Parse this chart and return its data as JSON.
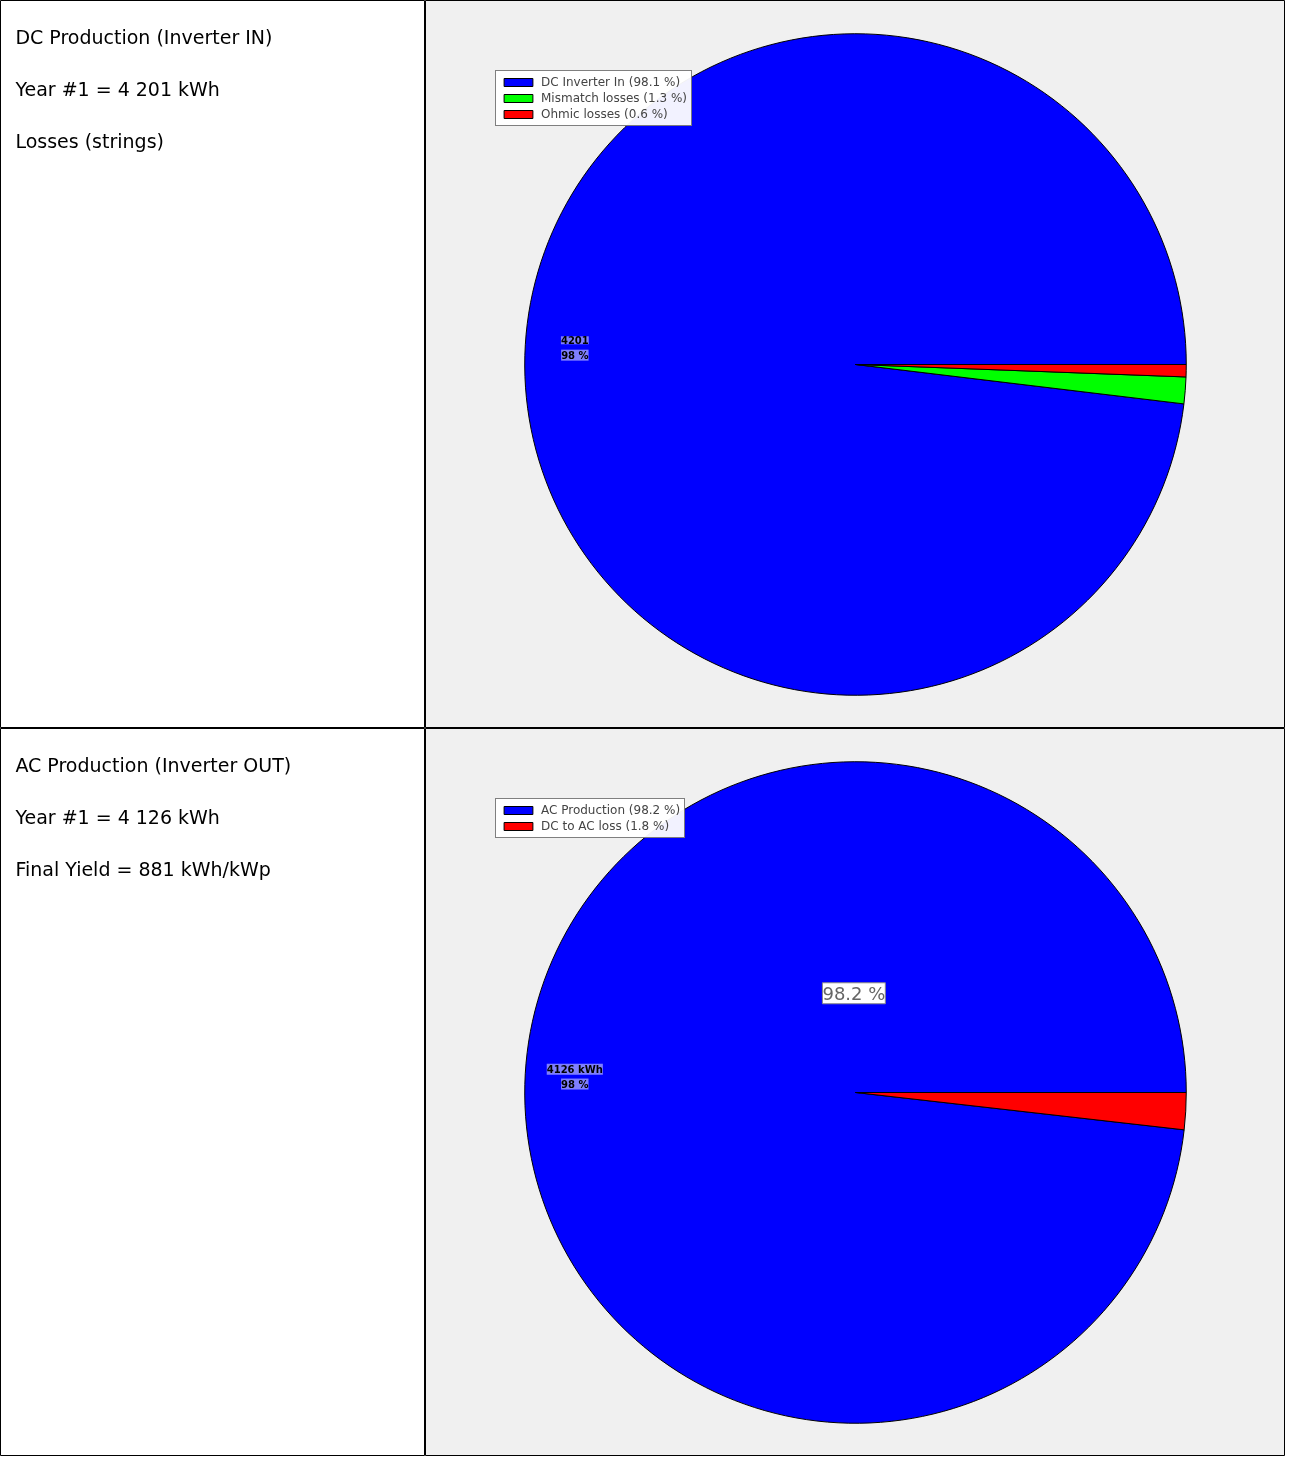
{
  "chart_data": [
    {
      "type": "other",
      "title": "DC Production (Inverter IN)",
      "annotations": [
        "Year #1 = 4 201 kWh",
        "Losses (strings)"
      ]
    },
    {
      "type": "pie",
      "categories": [
        "DC Inverter In (98.1 %)",
        "Mismatch losses (1.3 %)",
        "Ohmic losses (0.6 %)"
      ],
      "values": [
        98.1,
        1.3,
        0.6
      ],
      "colors": [
        "#0000ff",
        "#00ff00",
        "#ff0000"
      ],
      "value_labels": [
        "4201\n98 %",
        null,
        null
      ],
      "legend": "top left"
    },
    {
      "type": "other",
      "title": "AC Production (Inverter OUT)",
      "annotations": [
        "Year #1 = 4 126 kWh",
        "Final Yield = 881 kWh/kWp"
      ]
    },
    {
      "type": "pie",
      "categories": [
        "AC Production (98.2 %)",
        "DC to AC loss (1.8 %)"
      ],
      "values": [
        98.2,
        1.8
      ],
      "colors": [
        "#0000ff",
        "#ff0000"
      ],
      "value_labels": [
        "4126 kWh\n98 %",
        null
      ],
      "annotations": [
        "98.2 %"
      ],
      "legend": "top left"
    }
  ]
}
